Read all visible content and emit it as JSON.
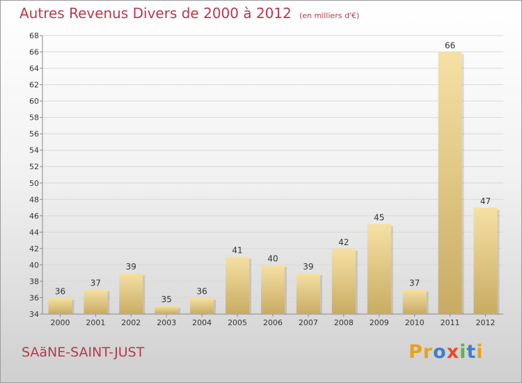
{
  "title": "Autres Revenus Divers de 2000 à 2012",
  "subtitle": "(en milliers d'€)",
  "commune": "SAäNE-SAINT-JUST",
  "logo": {
    "letters": [
      "P",
      "r",
      "o",
      "x",
      "i",
      "t",
      "i"
    ],
    "colors": [
      "#e8a21c",
      "#e8a21c",
      "#3d7fc9",
      "#e84a2a",
      "#57b847",
      "#3d7fc9",
      "#e8a21c"
    ]
  },
  "colors": {
    "title": "#b5394d",
    "bar_light": "#f5e1a4",
    "bar_dark": "#c9ab63",
    "grid": "#d8d8d8"
  },
  "chart_data": {
    "type": "bar",
    "categories": [
      "2000",
      "2001",
      "2002",
      "2003",
      "2004",
      "2005",
      "2006",
      "2007",
      "2008",
      "2009",
      "2010",
      "2011",
      "2012"
    ],
    "values": [
      36,
      37,
      39,
      35,
      36,
      41,
      40,
      39,
      42,
      45,
      37,
      66,
      47
    ],
    "ylim": [
      34,
      68
    ],
    "yticks": [
      34,
      36,
      38,
      40,
      42,
      44,
      46,
      48,
      50,
      52,
      54,
      56,
      58,
      60,
      62,
      64,
      66,
      68
    ],
    "grid": true,
    "data_labels": true
  }
}
